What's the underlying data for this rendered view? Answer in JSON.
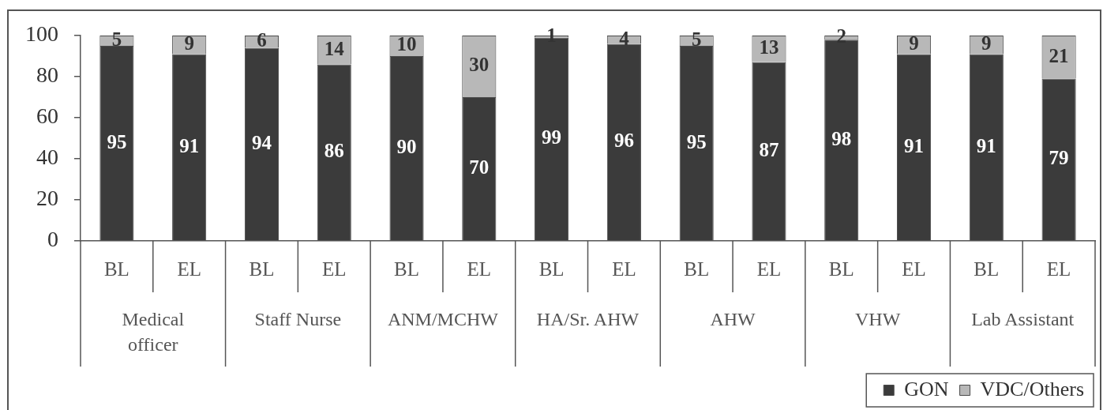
{
  "chart_data": {
    "type": "bar",
    "stacked": true,
    "categories": [
      "BL",
      "EL",
      "BL",
      "EL",
      "BL",
      "EL",
      "BL",
      "EL",
      "BL",
      "EL",
      "BL",
      "EL",
      "BL",
      "EL"
    ],
    "series": [
      {
        "name": "GON",
        "color": "#3b3b3b",
        "values": [
          95,
          91,
          94,
          86,
          90,
          70,
          99,
          96,
          95,
          87,
          98,
          91,
          91,
          79
        ]
      },
      {
        "name": "VDC/Others",
        "color": "#b8b8b8",
        "values": [
          5,
          9,
          6,
          14,
          10,
          30,
          1,
          4,
          5,
          13,
          2,
          9,
          9,
          21
        ]
      }
    ],
    "ylim": [
      0,
      100
    ],
    "yticks": [
      0,
      20,
      40,
      60,
      80,
      100
    ],
    "grid": false,
    "legend": "bottom right",
    "data_labels": true,
    "annotations": [
      "Medical officer",
      "Staff Nurse",
      "ANM/MCHW",
      "HA/Sr. AHW",
      "AHW",
      "VHW",
      "Lab Assistant"
    ]
  }
}
